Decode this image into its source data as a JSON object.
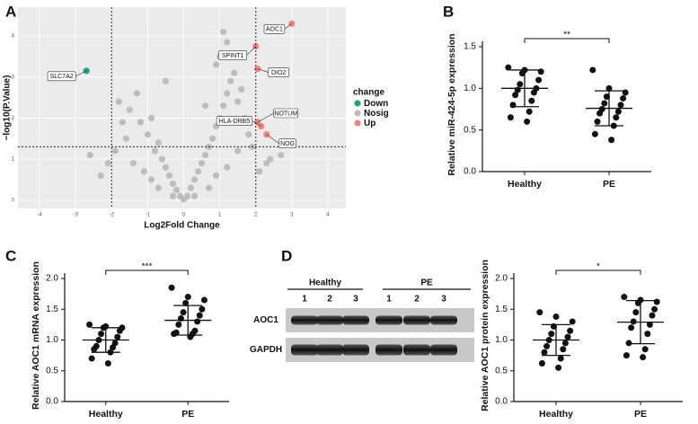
{
  "chart_data": [
    {
      "type": "volcano",
      "panel": "A",
      "x_label": "Log2Fold Change",
      "y_label": "−log10(P.Value)",
      "xlim": [
        -4.6,
        4.5
      ],
      "ylim": [
        -0.2,
        4.7
      ],
      "xticks": [
        -4,
        -3,
        -2,
        -1,
        0,
        1,
        2,
        3,
        4
      ],
      "yticks": [
        0,
        1,
        2,
        3,
        4
      ],
      "vlines": [
        -2,
        2
      ],
      "hline": 1.3,
      "grid": true,
      "legend_title": "change",
      "legend": "right",
      "series": [
        {
          "name": "Down",
          "color": "#1fa383",
          "x": [
            -2.7
          ],
          "values": [
            3.15
          ],
          "point_labels": [
            "SLC7A2"
          ]
        },
        {
          "name": "Nosig",
          "color": "#bdbdbd",
          "x": [
            -1.8,
            -1.5,
            -1.3,
            -1.2,
            -1.0,
            -0.9,
            -0.8,
            -0.7,
            -0.6,
            -0.5,
            -0.4,
            -0.3,
            -0.2,
            -0.1,
            0,
            0.1,
            0.2,
            0.3,
            0.4,
            0.5,
            0.6,
            0.7,
            0.8,
            0.9,
            1.0,
            1.1,
            1.2,
            1.3,
            1.4,
            1.1,
            1.2,
            0.9,
            1.5,
            1.7,
            1.8,
            1.9,
            -1.6,
            -1.9,
            -2.3,
            -2.1,
            2.3,
            2.1,
            2.7,
            2.4,
            -0.7,
            0.7,
            -1.1,
            1.2,
            -0.5,
            -1.4,
            1.5,
            -0.9,
            0.9,
            0.3,
            -0.3,
            1.6,
            -1.7,
            -2.6,
            1.0,
            0.6
          ],
          "values": [
            2.4,
            2.2,
            2.6,
            1.9,
            1.6,
            2.0,
            1.2,
            1.4,
            1.0,
            0.8,
            0.6,
            0.4,
            0.25,
            0.1,
            0.02,
            0.1,
            0.3,
            0.5,
            0.7,
            0.9,
            1.1,
            1.3,
            1.5,
            1.8,
            2.0,
            2.3,
            2.6,
            2.9,
            3.1,
            4.1,
            3.85,
            3.3,
            2.4,
            2.0,
            1.6,
            1.3,
            1.5,
            1.2,
            0.6,
            0.9,
            0.9,
            0.7,
            1.1,
            1.0,
            0.3,
            0.3,
            0.7,
            0.8,
            2.9,
            0.9,
            1.2,
            0.5,
            0.6,
            0.1,
            0.1,
            2.7,
            1.9,
            1.1,
            3.5,
            2.3
          ]
        },
        {
          "name": "Up",
          "color": "#f4837b",
          "x": [
            3.0,
            2.0,
            2.05,
            2.05,
            2.15,
            2.3
          ],
          "values": [
            4.3,
            3.75,
            3.2,
            1.9,
            1.8,
            1.6
          ],
          "point_labels": [
            "AOC1",
            "SPINT1",
            "DIO2",
            "NOTUM",
            "HLA-DRB5",
            "NOG"
          ]
        }
      ]
    },
    {
      "type": "dot",
      "panel": "B",
      "y_label": "Relative miR-424-5p expression",
      "categories": [
        "Healthy",
        "PE"
      ],
      "ylim": [
        0,
        1.5
      ],
      "yticks": [
        {
          "value": 0,
          "label": "0.0"
        },
        {
          "value": 0.5,
          "label": "0.5"
        },
        {
          "value": 1,
          "label": "1.0"
        },
        {
          "value": 1.5,
          "label": "1.5"
        }
      ],
      "values": [
        [
          1.25,
          1.22,
          1.2,
          1.18,
          1.1,
          1.05,
          1.0,
          0.98,
          0.95,
          0.92,
          0.85,
          0.8,
          0.72,
          0.65,
          0.6
        ],
        [
          1.22,
          1.0,
          0.95,
          0.9,
          0.88,
          0.82,
          0.8,
          0.75,
          0.72,
          0.7,
          0.65,
          0.6,
          0.55,
          0.45,
          0.38
        ]
      ],
      "means": [
        1.0,
        0.76
      ],
      "sds": [
        0.22,
        0.21
      ],
      "significance": "**"
    },
    {
      "type": "dot",
      "panel": "C",
      "y_label": "Relative AOC1 mRNA expression",
      "categories": [
        "Healthy",
        "PE"
      ],
      "ylim": [
        0,
        2
      ],
      "yticks": [
        {
          "value": 0,
          "label": "0.0"
        },
        {
          "value": 0.5,
          "label": "0.5"
        },
        {
          "value": 1,
          "label": "1.0"
        },
        {
          "value": 1.5,
          "label": "1.5"
        },
        {
          "value": 2,
          "label": "2.0"
        }
      ],
      "values": [
        [
          1.25,
          1.22,
          1.2,
          1.2,
          1.15,
          1.1,
          1.05,
          1.0,
          0.95,
          0.9,
          0.88,
          0.85,
          0.8,
          0.7,
          0.62
        ],
        [
          1.85,
          1.7,
          1.65,
          1.6,
          1.5,
          1.45,
          1.4,
          1.35,
          1.3,
          1.25,
          1.15,
          1.12,
          1.1,
          1.1,
          1.05
        ]
      ],
      "means": [
        1.0,
        1.32
      ],
      "sds": [
        0.2,
        0.24
      ],
      "significance": "***"
    },
    {
      "type": "dot",
      "y_label": "Relative AOC1 protein expression",
      "categories": [
        "Healthy",
        "PE"
      ],
      "ylim": [
        0,
        2
      ],
      "yticks": [
        {
          "value": 0,
          "label": "0.0"
        },
        {
          "value": 0.5,
          "label": "0.5"
        },
        {
          "value": 1,
          "label": "1.0"
        },
        {
          "value": 1.5,
          "label": "1.5"
        },
        {
          "value": 2,
          "label": "2.0"
        }
      ],
      "values": [
        [
          1.45,
          1.38,
          1.3,
          1.22,
          1.15,
          1.1,
          1.05,
          1.0,
          0.95,
          0.9,
          0.85,
          0.8,
          0.7,
          0.62,
          0.55
        ],
        [
          1.7,
          1.65,
          1.62,
          1.6,
          1.5,
          1.45,
          1.4,
          1.3,
          1.25,
          1.2,
          1.1,
          0.95,
          0.85,
          0.75,
          0.72
        ]
      ],
      "means": [
        1.0,
        1.29
      ],
      "sds": [
        0.25,
        0.35
      ],
      "significance": "*"
    }
  ],
  "blot": {
    "panel": "D",
    "groups": [
      "Healthy",
      "PE"
    ],
    "lanes": [
      "1",
      "2",
      "3",
      "1",
      "2",
      "3"
    ],
    "rows": [
      "AOC1",
      "GAPDH"
    ]
  }
}
